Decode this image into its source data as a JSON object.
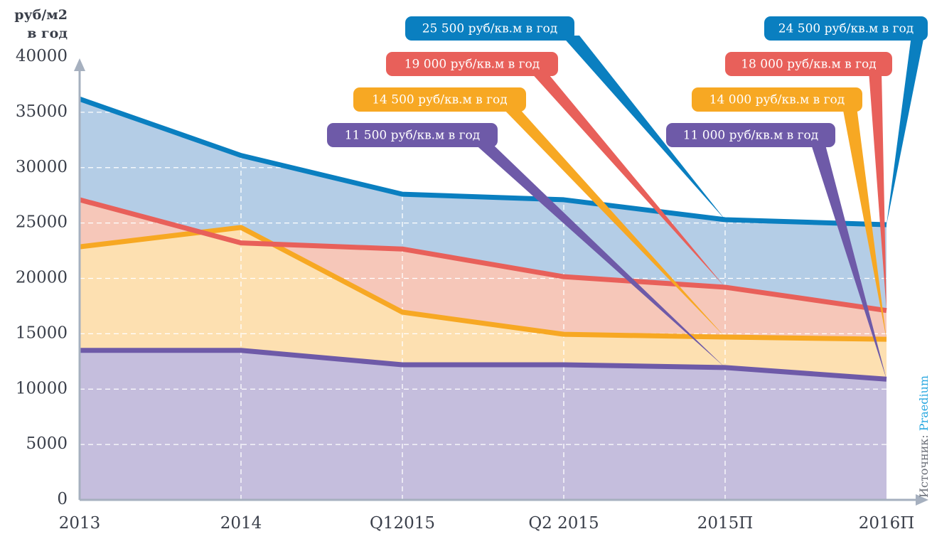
{
  "chart_data": {
    "type": "area",
    "y_label_lines": [
      "руб/м2",
      "в год"
    ],
    "categories": [
      "2013",
      "2014",
      "Q12015",
      "Q2 2015",
      "2015П",
      "2016П"
    ],
    "series": [
      {
        "color": "#0a7fc0",
        "fill": "#b4cde6",
        "values": [
          36200,
          31100,
          27600,
          27100,
          25300,
          24850
        ]
      },
      {
        "color": "#e8605a",
        "fill": "#f6c7b9",
        "values": [
          27100,
          23200,
          22650,
          20150,
          19200,
          17100
        ]
      },
      {
        "color": "#f7a823",
        "fill": "#fde0b1",
        "values": [
          22850,
          24600,
          16950,
          14950,
          14700,
          14500
        ]
      },
      {
        "color": "#6e5aa8",
        "fill": "#c5bedd",
        "values": [
          13500,
          13500,
          12200,
          12200,
          11950,
          10900
        ]
      }
    ],
    "ylim": [
      0,
      40000
    ],
    "yticks": [
      0,
      5000,
      10000,
      15000,
      20000,
      25000,
      30000,
      35000,
      40000
    ],
    "grid": true,
    "annotations": [
      {
        "text": "25 500 руб/кв.м в год",
        "color": "#0a7fc0"
      },
      {
        "text": "19 000 руб/кв.м в год",
        "color": "#e8605a"
      },
      {
        "text": "14 500 руб/кв.м в год",
        "color": "#f7a823"
      },
      {
        "text": "11 500 руб/кв.м в год",
        "color": "#6e5aa8"
      },
      {
        "text": "24 500 руб/кв.м в год",
        "color": "#0a7fc0"
      },
      {
        "text": "18 000 руб/кв.м в год",
        "color": "#e8605a"
      },
      {
        "text": "14 000 руб/кв.м в год",
        "color": "#f7a823"
      },
      {
        "text": "11 000 руб/кв.м в год",
        "color": "#6e5aa8"
      }
    ],
    "source_prefix": "Источник:",
    "source_name": "Praedium",
    "source_color": "#29a8e0"
  }
}
